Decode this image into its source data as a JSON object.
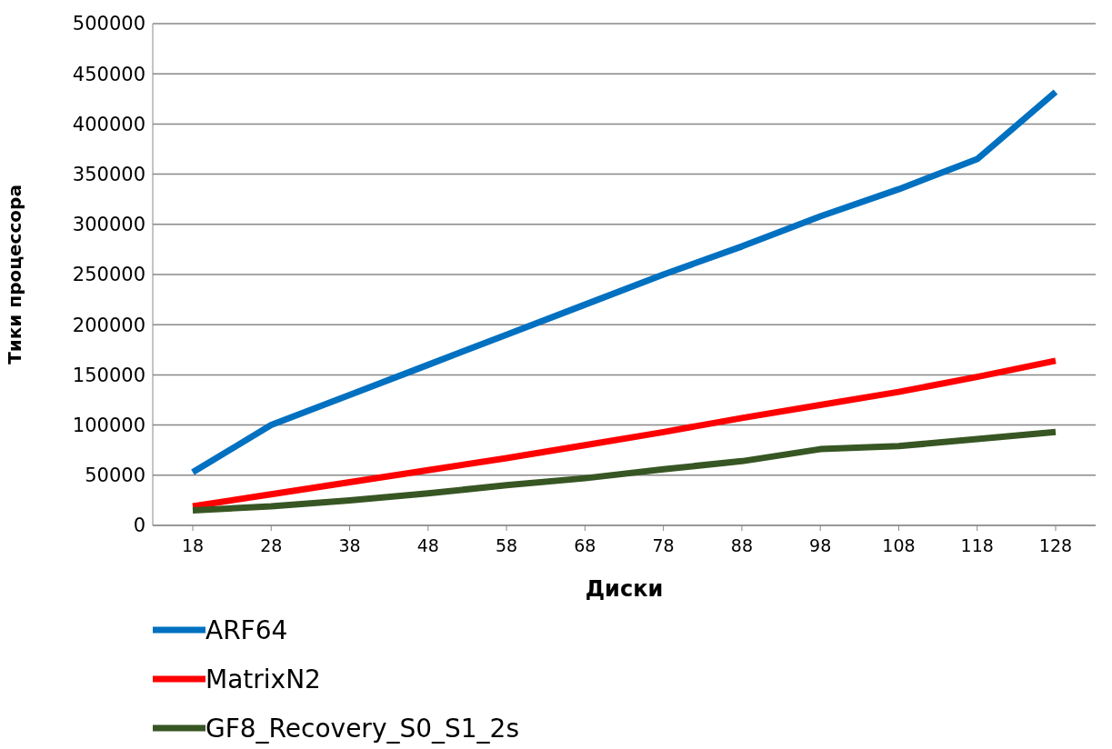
{
  "chart_data": {
    "type": "line",
    "xlabel": "Диски",
    "ylabel": "Тики процессора",
    "categories": [
      "18",
      "28",
      "38",
      "48",
      "58",
      "68",
      "78",
      "88",
      "98",
      "108",
      "118",
      "128"
    ],
    "series": [
      {
        "name": "ARF64",
        "color": "#0070c0",
        "values": [
          53000,
          100000,
          130000,
          160000,
          190000,
          220000,
          250000,
          278000,
          308000,
          335000,
          365000,
          432000
        ]
      },
      {
        "name": "MatrixN2",
        "color": "#ff0000",
        "values": [
          19000,
          31000,
          43000,
          55000,
          67000,
          80000,
          93000,
          107000,
          120000,
          133000,
          148000,
          164000
        ]
      },
      {
        "name": "GF8_Recovery_S0_S1_2s",
        "color": "#375623",
        "values": [
          15000,
          19000,
          25000,
          32000,
          40000,
          47000,
          56000,
          64000,
          76000,
          79000,
          86000,
          93000
        ]
      }
    ],
    "ylim": [
      0,
      500000
    ],
    "yticks": [
      0,
      50000,
      100000,
      150000,
      200000,
      250000,
      300000,
      350000,
      400000,
      450000,
      500000
    ],
    "grid": "y",
    "legend": "bottom",
    "marker": "none",
    "line_style": "solid"
  }
}
